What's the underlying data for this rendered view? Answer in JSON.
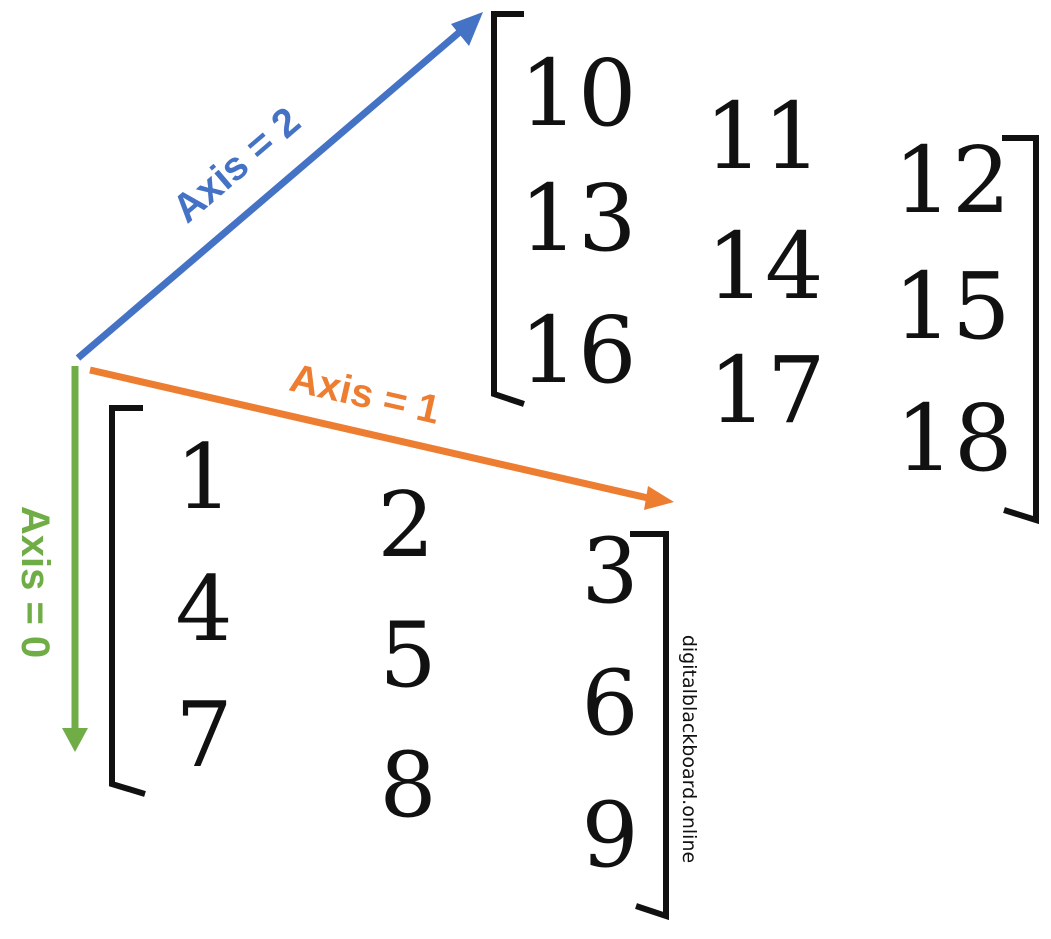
{
  "axes": [
    {
      "label": "Axis = 0",
      "color": "#70AD47"
    },
    {
      "label": "Axis = 1",
      "color": "#ED7D31"
    },
    {
      "label": "Axis = 2",
      "color": "#4472C4"
    }
  ],
  "front_matrix": {
    "rows": [
      [
        "1",
        "2",
        "3"
      ],
      [
        "4",
        "5",
        "6"
      ],
      [
        "7",
        "8",
        "9"
      ]
    ]
  },
  "back_matrix": {
    "rows": [
      [
        "10",
        "11",
        "12"
      ],
      [
        "13",
        "14",
        "15"
      ],
      [
        "16",
        "17",
        "18"
      ]
    ]
  },
  "credit": "digitalblackboard.online"
}
